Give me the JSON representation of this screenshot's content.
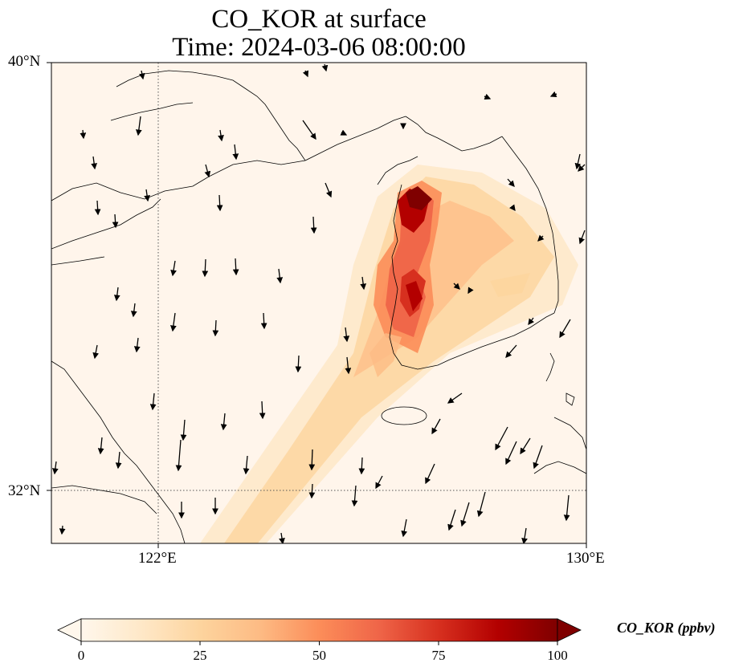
{
  "title": {
    "line1": "CO_KOR at surface",
    "line2": "Time: 2024-03-06 08:00:00"
  },
  "map": {
    "extent_lon": [
      118,
      130
    ],
    "extent_lat": [
      30.8,
      40
    ],
    "latitude_ticks": [
      "40°N",
      "32°N"
    ],
    "longitude_ticks": [
      "122°E",
      "130°E"
    ],
    "gridlines": {
      "lon": 122,
      "lat": 32,
      "style": "dotted"
    },
    "background_color": "#fff5eb",
    "coastline_color": "#000000",
    "wind_vector_color": "#000000",
    "plume_region": "Korean peninsula west coast, extending southwest over the Yellow Sea"
  },
  "colorbar": {
    "label": "CO_KOR (ppbv)",
    "ticks": [
      "0",
      "25",
      "50",
      "75",
      "100"
    ],
    "range": [
      0,
      100
    ],
    "colormap": "OrRd",
    "colors": [
      "#fff7ec",
      "#fee8c8",
      "#fdd49e",
      "#fdbb84",
      "#fc8d59",
      "#ef6548",
      "#d7301f",
      "#b30000",
      "#7f0000"
    ],
    "extend": "both"
  }
}
